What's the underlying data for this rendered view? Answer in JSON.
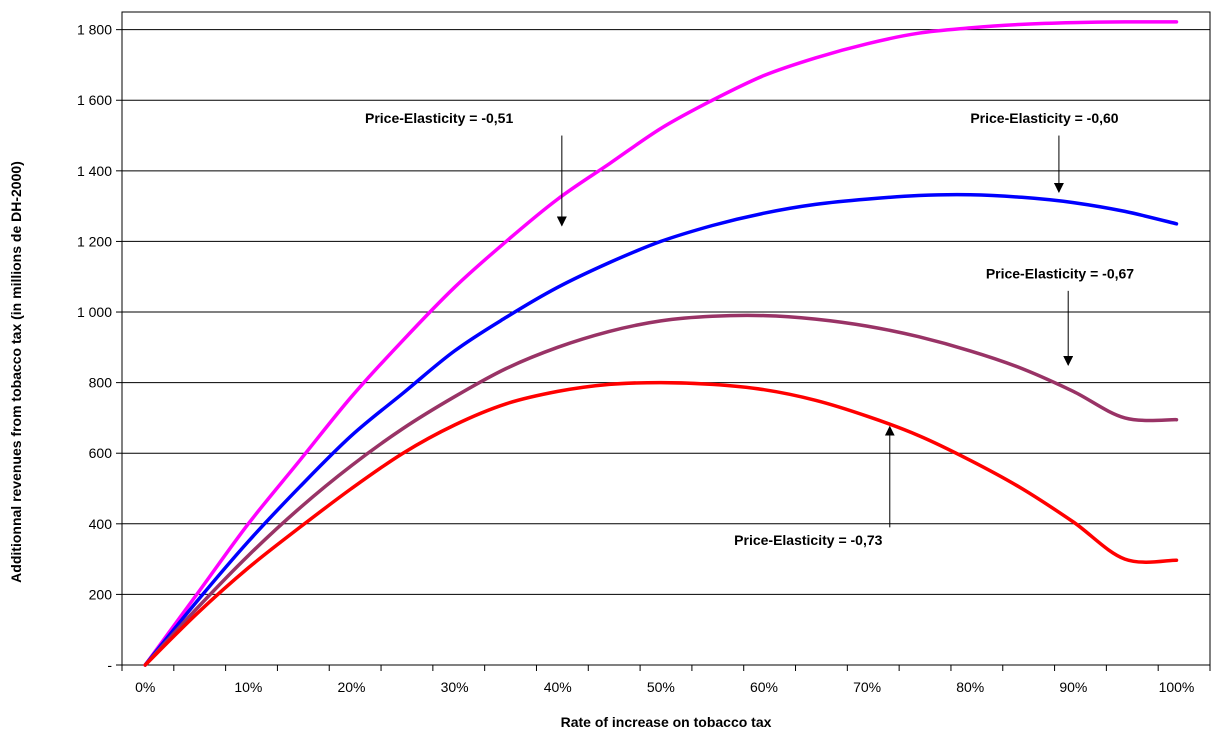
{
  "chart_data": {
    "type": "line",
    "xlabel": "Rate of increase on tobacco tax",
    "ylabel": "Additionnal revenues from tobacco tax (in millions de DH-2000)",
    "x": [
      0,
      5,
      10,
      15,
      20,
      25,
      30,
      35,
      40,
      45,
      50,
      55,
      60,
      65,
      70,
      75,
      80,
      85,
      90,
      95,
      100
    ],
    "x_ticks": [
      "0%",
      "10%",
      "20%",
      "30%",
      "40%",
      "50%",
      "60%",
      "70%",
      "80%",
      "90%",
      "100%"
    ],
    "x_tick_values": [
      0,
      10,
      20,
      30,
      40,
      50,
      60,
      70,
      80,
      90,
      100
    ],
    "xlim": [
      -2.25,
      103.25
    ],
    "y_ticks": [
      "-",
      "200",
      "400",
      "600",
      "800",
      "1 000",
      "1 200",
      "1 400",
      "1 600",
      "1 800"
    ],
    "y_tick_values": [
      0,
      200,
      400,
      600,
      800,
      1000,
      1200,
      1400,
      1600,
      1800
    ],
    "ylim": [
      0,
      1850
    ],
    "grid": "horizontal",
    "series": [
      {
        "name": "",
        "color": "#ff00ff",
        "values": [
          0,
          200,
          400,
          580,
          760,
          920,
          1070,
          1200,
          1320,
          1420,
          1520,
          1600,
          1670,
          1720,
          1760,
          1790,
          1805,
          1815,
          1820,
          1822,
          1822
        ]
      },
      {
        "name": "",
        "color": "#0000ff",
        "values": [
          0,
          180,
          350,
          505,
          650,
          770,
          890,
          985,
          1070,
          1140,
          1200,
          1245,
          1280,
          1305,
          1320,
          1330,
          1332,
          1325,
          1310,
          1285,
          1250
        ]
      },
      {
        "name": "",
        "color": "#993366",
        "values": [
          0,
          160,
          310,
          445,
          565,
          670,
          760,
          840,
          900,
          945,
          975,
          988,
          990,
          980,
          960,
          930,
          890,
          840,
          775,
          700,
          695
        ]
      },
      {
        "name": "",
        "color": "#ff0000",
        "values": [
          0,
          145,
          275,
          390,
          500,
          600,
          680,
          740,
          775,
          795,
          800,
          795,
          780,
          750,
          705,
          650,
          580,
          500,
          405,
          300,
          297
        ]
      }
    ],
    "annotations": [
      {
        "text": "Price-Elasticity = -0,51",
        "label_x": 28.5,
        "label_y": 1536,
        "arrow_from": [
          40.4,
          1500
        ],
        "arrow_to": [
          40.4,
          1245
        ]
      },
      {
        "text": "Price-Elasticity = -0,60",
        "label_x": 87.2,
        "label_y": 1536,
        "arrow_from": [
          88.6,
          1500
        ],
        "arrow_to": [
          88.6,
          1340
        ]
      },
      {
        "text": "Price-Elasticity = -0,67",
        "label_x": 88.7,
        "label_y": 1095,
        "arrow_from": [
          89.5,
          1060
        ],
        "arrow_to": [
          89.5,
          850
        ]
      },
      {
        "text": "Price-Elasticity = -0,73",
        "label_x": 64.3,
        "label_y": 340,
        "arrow_from": [
          72.2,
          390
        ],
        "arrow_to": [
          72.2,
          675
        ]
      }
    ]
  }
}
